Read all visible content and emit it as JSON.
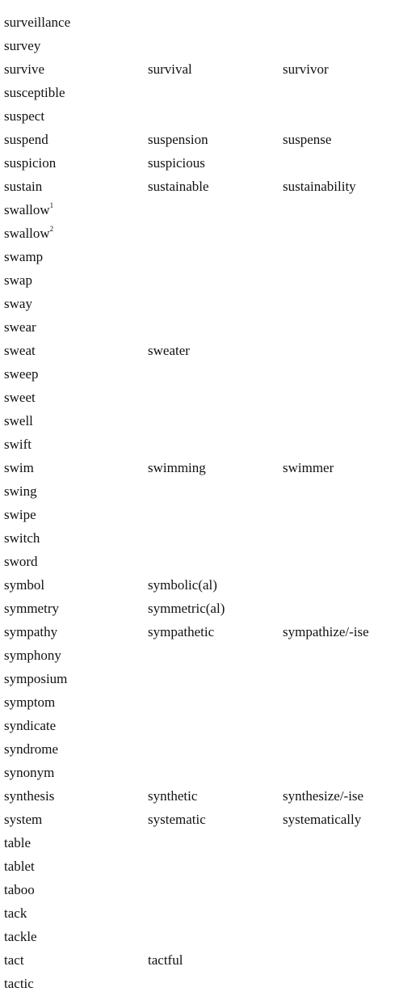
{
  "rows": [
    [
      "surveillance",
      "",
      ""
    ],
    [
      "survey",
      "",
      ""
    ],
    [
      "survive",
      "survival",
      "survivor"
    ],
    [
      "susceptible",
      "",
      ""
    ],
    [
      "suspect",
      "",
      ""
    ],
    [
      "suspend",
      "suspension",
      "suspense"
    ],
    [
      "suspicion",
      "suspicious",
      ""
    ],
    [
      "sustain",
      "sustainable",
      "sustainability"
    ],
    [
      "swallow",
      "",
      "",
      "1"
    ],
    [
      "swallow",
      "",
      "",
      "2"
    ],
    [
      "swamp",
      "",
      ""
    ],
    [
      "swap",
      "",
      ""
    ],
    [
      "sway",
      "",
      ""
    ],
    [
      "swear",
      "",
      ""
    ],
    [
      "sweat",
      "sweater",
      ""
    ],
    [
      "sweep",
      "",
      ""
    ],
    [
      "sweet",
      "",
      ""
    ],
    [
      "swell",
      "",
      ""
    ],
    [
      "swift",
      "",
      ""
    ],
    [
      "swim",
      "swimming",
      "swimmer"
    ],
    [
      "swing",
      "",
      ""
    ],
    [
      "swipe",
      "",
      ""
    ],
    [
      "switch",
      "",
      ""
    ],
    [
      "sword",
      "",
      ""
    ],
    [
      "symbol",
      "symbolic(al)",
      ""
    ],
    [
      "symmetry",
      "symmetric(al)",
      ""
    ],
    [
      "sympathy",
      "sympathetic",
      "sympathize/-ise"
    ],
    [
      "symphony",
      "",
      ""
    ],
    [
      "symposium",
      "",
      ""
    ],
    [
      "symptom",
      "",
      ""
    ],
    [
      "syndicate",
      "",
      ""
    ],
    [
      "syndrome",
      "",
      ""
    ],
    [
      "synonym",
      "",
      ""
    ],
    [
      "synthesis",
      "synthetic",
      "synthesize/-ise"
    ],
    [
      "system",
      "systematic",
      "systematically"
    ],
    [
      "table",
      "",
      ""
    ],
    [
      "tablet",
      "",
      ""
    ],
    [
      "taboo",
      "",
      ""
    ],
    [
      "tack",
      "",
      ""
    ],
    [
      "tackle",
      "",
      ""
    ],
    [
      "tact",
      "tactful",
      ""
    ],
    [
      "tactic",
      "",
      ""
    ]
  ]
}
